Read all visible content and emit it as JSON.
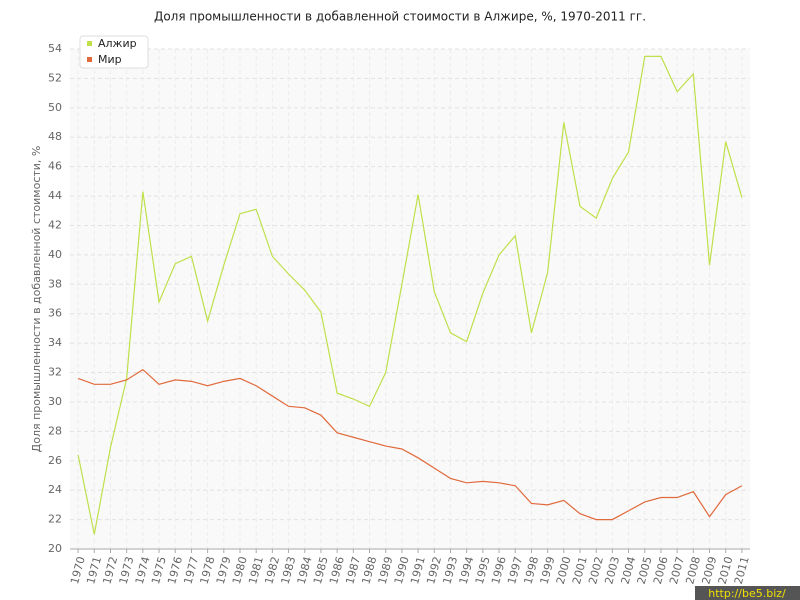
{
  "chart_data": {
    "type": "line",
    "title": "Доля промышленности в добавленной стоимости в Алжире, %, 1970-2011 гг.",
    "y_label": "Доля промышленности в добавленной стоимости, %",
    "categories": [
      "1970",
      "1971",
      "1972",
      "1973",
      "1974",
      "1975",
      "1976",
      "1977",
      "1978",
      "1979",
      "1980",
      "1981",
      "1982",
      "1983",
      "1984",
      "1985",
      "1986",
      "1987",
      "1988",
      "1989",
      "1990",
      "1991",
      "1992",
      "1993",
      "1994",
      "1995",
      "1996",
      "1997",
      "1998",
      "1999",
      "2000",
      "2001",
      "2002",
      "2003",
      "2004",
      "2005",
      "2006",
      "2007",
      "2008",
      "2009",
      "2010",
      "2011"
    ],
    "series": [
      {
        "name": "Алжир",
        "color": "#bfe04a",
        "values": [
          26.4,
          21.0,
          26.9,
          31.6,
          44.3,
          36.8,
          39.4,
          39.9,
          35.5,
          39.3,
          42.8,
          43.1,
          39.9,
          38.7,
          37.6,
          36.1,
          30.6,
          30.2,
          29.7,
          32.0,
          38.0,
          44.1,
          37.5,
          34.7,
          34.1,
          37.4,
          40.0,
          41.3,
          34.7,
          38.8,
          49.0,
          43.3,
          42.5,
          45.2,
          47.0,
          53.5,
          53.5,
          51.1,
          52.3,
          39.3,
          47.7,
          43.9
        ]
      },
      {
        "name": "Мир",
        "color": "#e06a3c",
        "values": [
          31.6,
          31.2,
          31.2,
          31.5,
          32.2,
          31.2,
          31.5,
          31.4,
          31.1,
          31.4,
          31.6,
          31.1,
          30.4,
          29.7,
          29.6,
          29.1,
          27.9,
          27.6,
          27.3,
          27.0,
          26.8,
          26.2,
          25.5,
          24.8,
          24.5,
          24.6,
          24.5,
          24.3,
          23.1,
          23.0,
          23.3,
          22.4,
          22.0,
          22.0,
          22.6,
          23.2,
          23.5,
          23.5,
          23.9,
          22.2,
          23.7,
          24.3
        ]
      }
    ],
    "ylim": [
      20,
      54
    ],
    "yticks": [
      20,
      22,
      24,
      26,
      28,
      30,
      32,
      34,
      36,
      38,
      40,
      42,
      44,
      46,
      48,
      50,
      52,
      54
    ],
    "grid": true,
    "legend": "top-left"
  },
  "watermark": "http://be5.biz/"
}
